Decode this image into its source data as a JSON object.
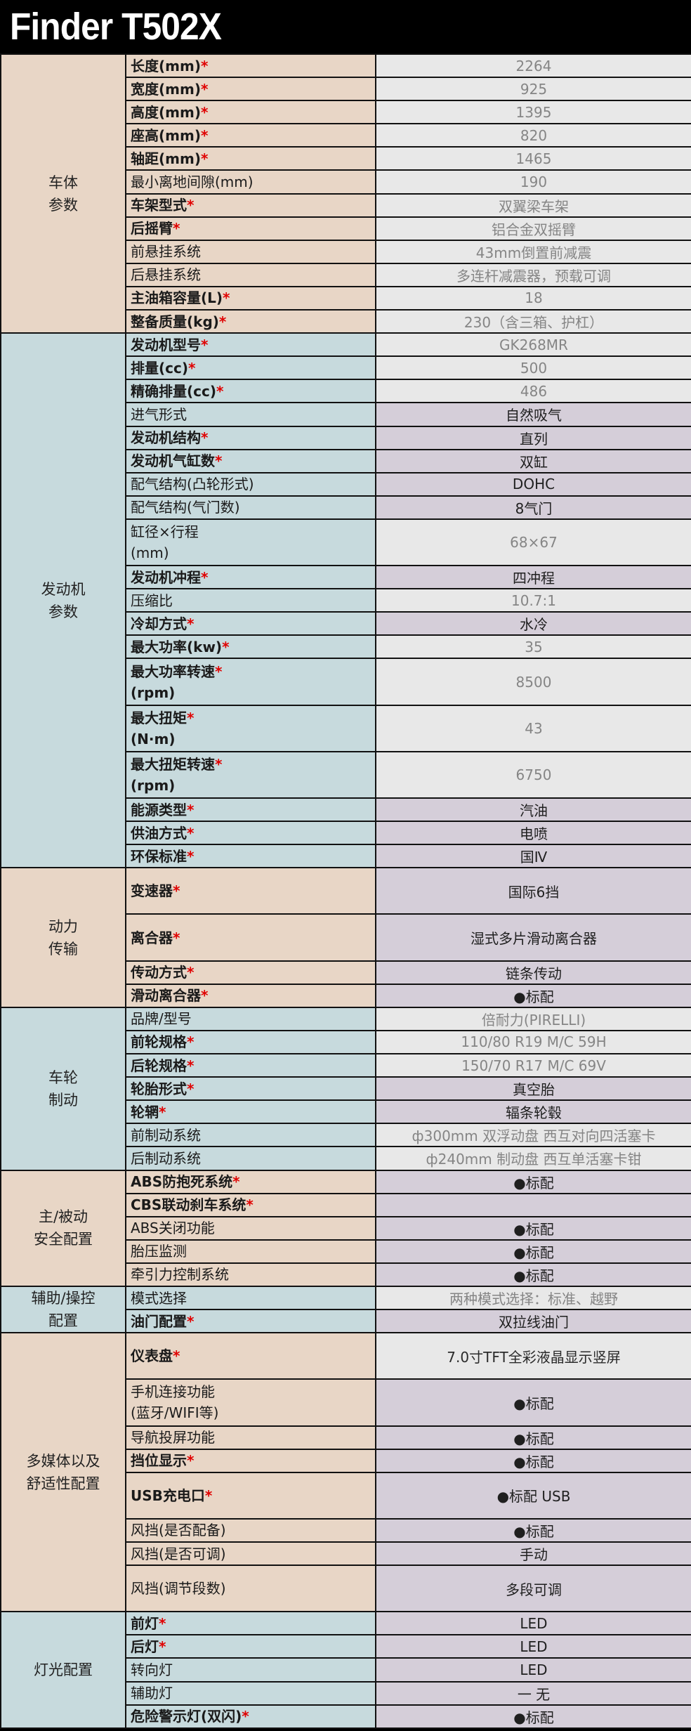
{
  "title": "Finder T502X",
  "colors": {
    "peach": "#e8d6c6",
    "blue": "#c7dadd",
    "value_gray": "#e8e8e8",
    "value_lavender": "#d5ced9",
    "required_mark": "#e00000"
  },
  "required_mark": "*",
  "sections": [
    {
      "name": "车体\n参数",
      "color": "peach",
      "rows": [
        {
          "label": [
            "长度(mm)"
          ],
          "required": true,
          "value": "2264",
          "highlight": false
        },
        {
          "label": [
            "宽度(mm)"
          ],
          "required": true,
          "value": "925",
          "highlight": false
        },
        {
          "label": [
            "高度(mm)"
          ],
          "required": true,
          "value": "1395",
          "highlight": false
        },
        {
          "label": [
            "座高(mm)"
          ],
          "required": true,
          "value": "820",
          "highlight": false
        },
        {
          "label": [
            "轴距(mm)"
          ],
          "required": true,
          "value": "1465",
          "highlight": false
        },
        {
          "label": [
            "最小离地间隙(mm)"
          ],
          "required": false,
          "value": "190",
          "highlight": false
        },
        {
          "label": [
            "车架型式"
          ],
          "required": true,
          "value": "双翼梁车架",
          "highlight": false
        },
        {
          "label": [
            "后摇臂"
          ],
          "required": true,
          "value": "铝合金双摇臂",
          "highlight": false
        },
        {
          "label": [
            "前悬挂系统"
          ],
          "required": false,
          "value": "43mm倒置前减震",
          "highlight": false
        },
        {
          "label": [
            "后悬挂系统"
          ],
          "required": false,
          "value": "多连杆减震器，预载可调",
          "highlight": false
        },
        {
          "label": [
            "主油箱容量(L)"
          ],
          "required": true,
          "value": "18",
          "highlight": false
        },
        {
          "label": [
            "整备质量(kg)"
          ],
          "required": true,
          "value": "230（含三箱、护杠）",
          "highlight": false
        }
      ]
    },
    {
      "name": "发动机\n参数",
      "color": "blue",
      "rows": [
        {
          "label": [
            "发动机型号"
          ],
          "required": true,
          "value": "GK268MR",
          "highlight": false
        },
        {
          "label": [
            "排量(cc)"
          ],
          "required": true,
          "value": "500",
          "highlight": false
        },
        {
          "label": [
            "精确排量(cc)"
          ],
          "required": true,
          "value": "486",
          "highlight": false
        },
        {
          "label": [
            "进气形式"
          ],
          "required": false,
          "value": "自然吸气",
          "highlight": true
        },
        {
          "label": [
            "发动机结构"
          ],
          "required": true,
          "value": "直列",
          "highlight": true
        },
        {
          "label": [
            "发动机气缸数"
          ],
          "required": true,
          "value": "双缸",
          "highlight": true
        },
        {
          "label": [
            "配气结构(凸轮形式)"
          ],
          "required": false,
          "value": "DOHC",
          "highlight": true
        },
        {
          "label": [
            "配气结构(气门数)"
          ],
          "required": false,
          "value": "8气门",
          "highlight": true
        },
        {
          "label": [
            "缸径×行程",
            "(mm)"
          ],
          "required": false,
          "value": "68×67",
          "highlight": false
        },
        {
          "label": [
            "发动机冲程"
          ],
          "required": true,
          "value": "四冲程",
          "highlight": true
        },
        {
          "label": [
            "压缩比"
          ],
          "required": false,
          "value": "10.7:1",
          "highlight": false
        },
        {
          "label": [
            "冷却方式"
          ],
          "required": true,
          "value": "水冷",
          "highlight": true
        },
        {
          "label": [
            "最大功率(kw)"
          ],
          "required": true,
          "value": "35",
          "highlight": false
        },
        {
          "label": [
            "最大功率转速",
            "(rpm)"
          ],
          "required": true,
          "value": "8500",
          "highlight": false
        },
        {
          "label": [
            "最大扭矩",
            "(N·m)"
          ],
          "required": true,
          "value": "43",
          "highlight": false
        },
        {
          "label": [
            "最大扭矩转速",
            "(rpm)"
          ],
          "required": true,
          "value": "6750",
          "highlight": false
        },
        {
          "label": [
            "能源类型"
          ],
          "required": true,
          "value": "汽油",
          "highlight": true
        },
        {
          "label": [
            "供油方式"
          ],
          "required": true,
          "value": "电喷",
          "highlight": true
        },
        {
          "label": [
            "环保标准"
          ],
          "required": true,
          "value": "国Ⅳ",
          "highlight": true
        }
      ]
    },
    {
      "name": "动力\n传输",
      "color": "peach",
      "rows": [
        {
          "label": [
            "变速器"
          ],
          "required": true,
          "value": "国际6挡",
          "highlight": true
        },
        {
          "label": [
            "离合器"
          ],
          "required": true,
          "value": "湿式多片滑动离合器",
          "highlight": true
        },
        {
          "label": [
            "传动方式"
          ],
          "required": true,
          "value": "链条传动",
          "highlight": true
        },
        {
          "label": [
            "滑动离合器"
          ],
          "required": true,
          "value": "●标配",
          "highlight": true
        }
      ]
    },
    {
      "name": "车轮\n制动",
      "color": "blue",
      "rows": [
        {
          "label": [
            "品牌/型号"
          ],
          "required": false,
          "value": "倍耐力(PIRELLI)",
          "highlight": false
        },
        {
          "label": [
            "前轮规格"
          ],
          "required": true,
          "value": "110/80 R19 M/C 59H",
          "highlight": false
        },
        {
          "label": [
            "后轮规格"
          ],
          "required": true,
          "value": "150/70 R17 M/C 69V",
          "highlight": false
        },
        {
          "label": [
            "轮胎形式"
          ],
          "required": true,
          "value": "真空胎",
          "highlight": true
        },
        {
          "label": [
            "轮辋"
          ],
          "required": true,
          "value": "辐条轮毂",
          "highlight": true
        },
        {
          "label": [
            "前制动系统"
          ],
          "required": false,
          "value": "ф300mm 双浮动盘 西互对向四活塞卡",
          "highlight": false
        },
        {
          "label": [
            "后制动系统"
          ],
          "required": false,
          "value": "ф240mm 制动盘 西互单活塞卡钳",
          "highlight": false
        }
      ]
    },
    {
      "name": "主/被动\n安全配置",
      "color": "peach",
      "rows": [
        {
          "label": [
            "ABS防抱死系统"
          ],
          "required": true,
          "value": "●标配",
          "highlight": true
        },
        {
          "label": [
            "CBS联动刹车系统"
          ],
          "required": true,
          "value": "",
          "highlight": true
        },
        {
          "label": [
            "ABS关闭功能"
          ],
          "required": false,
          "value": "●标配",
          "highlight": true
        },
        {
          "label": [
            "胎压监测"
          ],
          "required": false,
          "value": "●标配",
          "highlight": true
        },
        {
          "label": [
            "牵引力控制系统"
          ],
          "required": false,
          "value": "●标配",
          "highlight": true
        }
      ]
    },
    {
      "name": "辅助/操控\n配置",
      "color": "blue",
      "rows": [
        {
          "label": [
            "模式选择"
          ],
          "required": false,
          "value": "两种模式选择：标准、越野",
          "highlight": false
        },
        {
          "label": [
            "油门配置"
          ],
          "required": true,
          "value": "双拉线油门",
          "highlight": true
        }
      ]
    },
    {
      "name": "多媒体以及\n舒适性配置",
      "color": "peach",
      "rows": [
        {
          "label": [
            "仪表盘"
          ],
          "required": true,
          "value": "7.0寸TFT全彩液晶显示竖屏",
          "highlight": false
        },
        {
          "label": [
            "手机连接功能",
            "(蓝牙/WIFI等)"
          ],
          "required": false,
          "value": "●标配",
          "highlight": true
        },
        {
          "label": [
            "导航投屏功能"
          ],
          "required": false,
          "value": "●标配",
          "highlight": true
        },
        {
          "label": [
            "挡位显示"
          ],
          "required": true,
          "value": "●标配",
          "highlight": true
        },
        {
          "label": [
            "USB充电口"
          ],
          "required": true,
          "value": "●标配 USB",
          "highlight": true
        },
        {
          "label": [
            "风挡(是否配备)"
          ],
          "required": false,
          "value": "●标配",
          "highlight": true
        },
        {
          "label": [
            "风挡(是否可调)"
          ],
          "required": false,
          "value": "手动",
          "highlight": true
        },
        {
          "label": [
            "风挡(调节段数)"
          ],
          "required": false,
          "value": "多段可调",
          "highlight": true
        }
      ]
    },
    {
      "name": "灯光配置",
      "color": "blue",
      "rows": [
        {
          "label": [
            "前灯"
          ],
          "required": true,
          "value": "LED",
          "highlight": true
        },
        {
          "label": [
            "后灯"
          ],
          "required": true,
          "value": "LED",
          "highlight": true
        },
        {
          "label": [
            "转向灯"
          ],
          "required": false,
          "value": "LED",
          "highlight": true
        },
        {
          "label": [
            "辅助灯"
          ],
          "required": false,
          "value": "一 无",
          "highlight": true
        },
        {
          "label": [
            "危险警示灯(双闪)"
          ],
          "required": true,
          "value": "●标配",
          "highlight": true
        }
      ]
    }
  ]
}
